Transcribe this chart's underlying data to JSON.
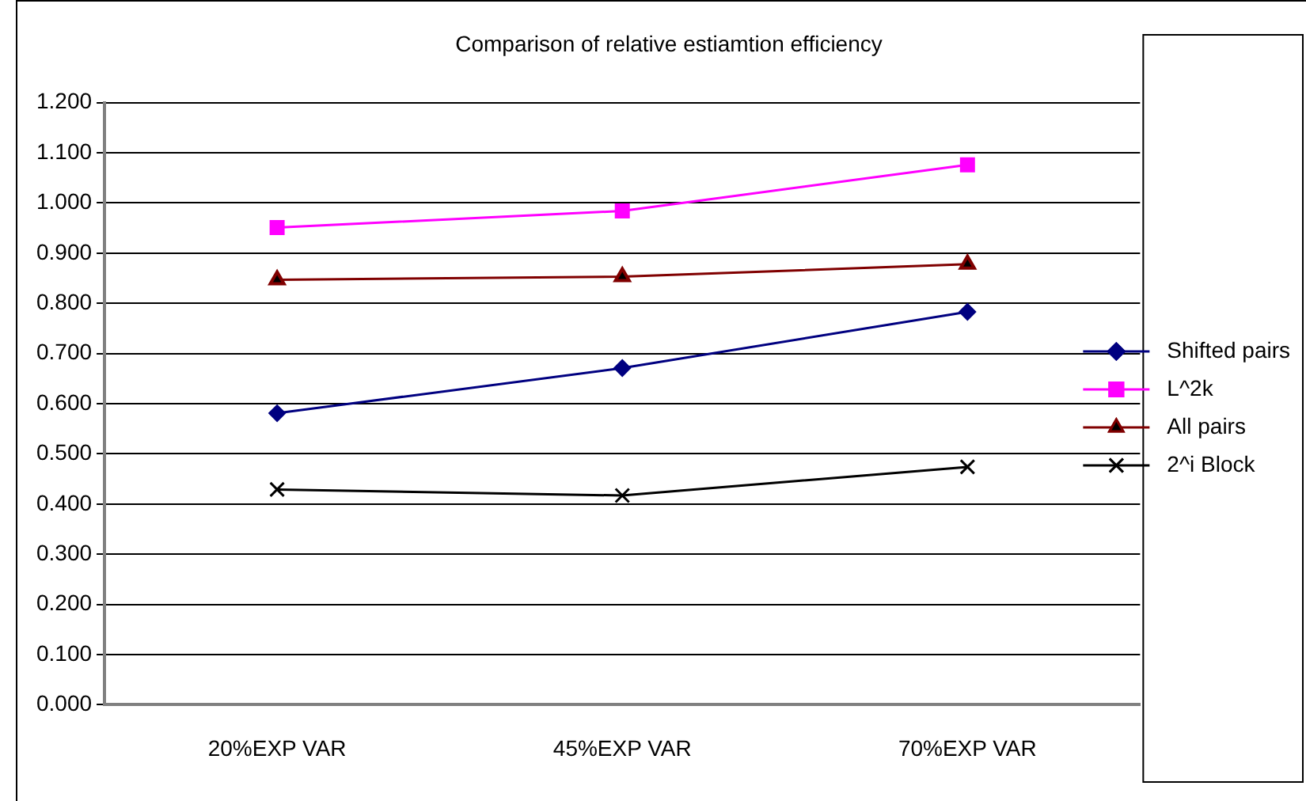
{
  "chart_data": {
    "type": "line",
    "title": "Comparison of relative estiamtion efficiency",
    "categories": [
      "20%EXP VAR",
      "45%EXP VAR",
      "70%EXP VAR"
    ],
    "series": [
      {
        "name": "Shifted pairs",
        "color": "#000080",
        "marker": "diamond",
        "values": [
          0.581,
          0.671,
          0.783
        ]
      },
      {
        "name": "L^2k",
        "color": "#ff00ff",
        "marker": "square",
        "values": [
          0.951,
          0.984,
          1.076
        ]
      },
      {
        "name": "All pairs",
        "color": "#800000",
        "marker": "triangle",
        "values": [
          0.847,
          0.853,
          0.878
        ]
      },
      {
        "name": "2^i Block",
        "color": "#000000",
        "marker": "cross",
        "values": [
          0.429,
          0.417,
          0.474
        ]
      }
    ],
    "ylim": [
      0,
      1.2
    ],
    "yticks": [
      {
        "value": 0,
        "label": "0.000"
      },
      {
        "value": 0.1,
        "label": "0.100"
      },
      {
        "value": 0.2,
        "label": "0.200"
      },
      {
        "value": 0.3,
        "label": "0.300"
      },
      {
        "value": 0.4,
        "label": "0.400"
      },
      {
        "value": 0.5,
        "label": "0.500"
      },
      {
        "value": 0.6,
        "label": "0.600"
      },
      {
        "value": 0.7,
        "label": "0.700"
      },
      {
        "value": 0.8,
        "label": "0.800"
      },
      {
        "value": 0.9,
        "label": "0.900"
      },
      {
        "value": 1,
        "label": "1.000"
      },
      {
        "value": 1.1,
        "label": "1.100"
      },
      {
        "value": 1.2,
        "label": "1.200"
      }
    ],
    "grid": "y",
    "legend": "right",
    "line_style": "solid"
  }
}
